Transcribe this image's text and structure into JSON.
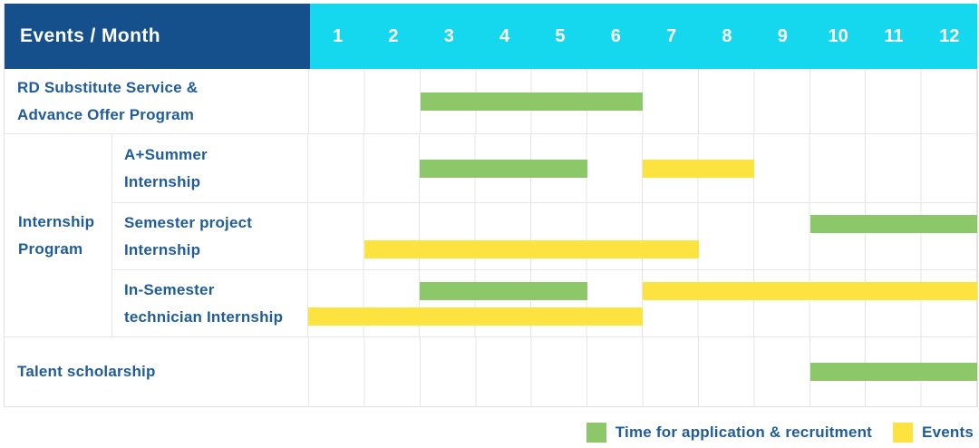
{
  "header": {
    "title": "Events / Month",
    "months": [
      "1",
      "2",
      "3",
      "4",
      "5",
      "6",
      "7",
      "8",
      "9",
      "10",
      "11",
      "12"
    ]
  },
  "colors": {
    "header_bg": "#15508C",
    "months_bg": "#15D7EE",
    "label_text": "#1F5C99",
    "recruitment": "#8CC76A",
    "event": "#FDE33F"
  },
  "group": {
    "category": "Internship Program",
    "label": "Internship\nProgram"
  },
  "gantt_rows": [
    {
      "category": "RD Substitute Service & Advance Offer Program",
      "label": "RD Substitute Service &\nAdvance Offer Program",
      "group": null,
      "bars": [
        {
          "series": "recruitment",
          "start": 3,
          "end": 6,
          "lane": "center"
        }
      ]
    },
    {
      "category": "A+Summer Internship",
      "label": "A+Summer\nInternship",
      "group": "Internship Program",
      "bars": [
        {
          "series": "recruitment",
          "start": 3,
          "end": 5,
          "lane": "center"
        },
        {
          "series": "event",
          "start": 7,
          "end": 8,
          "lane": "center"
        }
      ]
    },
    {
      "category": "Semester project Internship",
      "label": "Semester project\nInternship",
      "group": "Internship Program",
      "bars": [
        {
          "series": "recruitment",
          "start": 10,
          "end": 12,
          "lane": "upper"
        },
        {
          "series": "event",
          "start": 2,
          "end": 7,
          "lane": "lower"
        }
      ]
    },
    {
      "category": "In-Semester technician Internship",
      "label": "In-Semester\ntechnician Internship",
      "group": "Internship Program",
      "bars": [
        {
          "series": "recruitment",
          "start": 3,
          "end": 5,
          "lane": "upper"
        },
        {
          "series": "event",
          "start": 7,
          "end": 12,
          "lane": "upper"
        },
        {
          "series": "event",
          "start": 1,
          "end": 6,
          "lane": "lower"
        }
      ]
    },
    {
      "category": "Talent scholarship",
      "label": "Talent scholarship",
      "group": null,
      "bars": [
        {
          "series": "recruitment",
          "start": 10,
          "end": 12,
          "lane": "center"
        }
      ]
    }
  ],
  "legend": {
    "items": [
      {
        "series": "recruitment",
        "label": "Time for application & recruitment"
      },
      {
        "series": "event",
        "label": "Events"
      }
    ]
  },
  "chart_data": {
    "type": "bar",
    "subtype": "gantt",
    "title": "Events / Month",
    "xlabel": "Month",
    "x_ticks": [
      1,
      2,
      3,
      4,
      5,
      6,
      7,
      8,
      9,
      10,
      11,
      12
    ],
    "xlim": [
      1,
      12
    ],
    "grid": true,
    "legend_position": "bottom-right",
    "series_names": [
      "Time for application & recruitment",
      "Events"
    ],
    "rows": [
      {
        "category": "RD Substitute Service & Advance Offer Program",
        "group": null,
        "bars": [
          {
            "series": "Time for application & recruitment",
            "start_month": 3,
            "end_month": 6
          }
        ]
      },
      {
        "category": "A+Summer Internship",
        "group": "Internship Program",
        "bars": [
          {
            "series": "Time for application & recruitment",
            "start_month": 3,
            "end_month": 5
          },
          {
            "series": "Events",
            "start_month": 7,
            "end_month": 8
          }
        ]
      },
      {
        "category": "Semester project Internship",
        "group": "Internship Program",
        "bars": [
          {
            "series": "Time for application & recruitment",
            "start_month": 10,
            "end_month": 12
          },
          {
            "series": "Events",
            "start_month": 2,
            "end_month": 7
          }
        ]
      },
      {
        "category": "In-Semester technician Internship",
        "group": "Internship Program",
        "bars": [
          {
            "series": "Time for application & recruitment",
            "start_month": 3,
            "end_month": 5
          },
          {
            "series": "Events",
            "start_month": 7,
            "end_month": 12
          },
          {
            "series": "Events",
            "start_month": 1,
            "end_month": 6
          }
        ]
      },
      {
        "category": "Talent scholarship",
        "group": null,
        "bars": [
          {
            "series": "Time for application & recruitment",
            "start_month": 10,
            "end_month": 12
          }
        ]
      }
    ]
  }
}
